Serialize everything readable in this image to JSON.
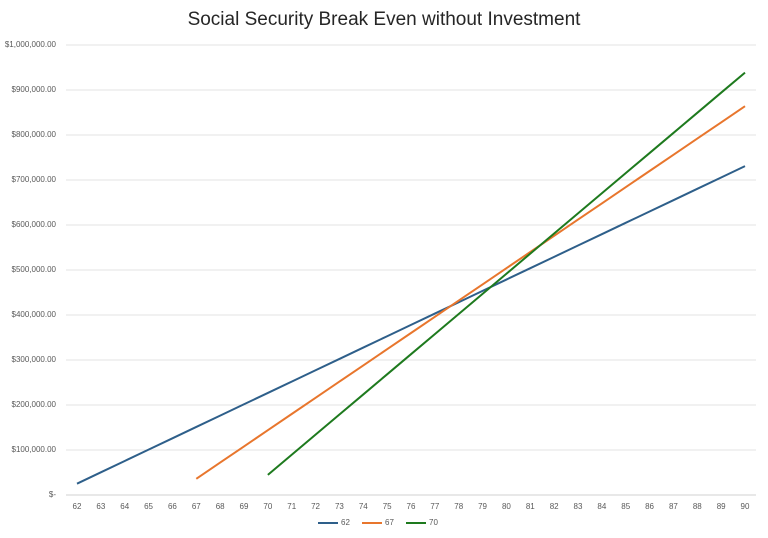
{
  "chart_data": {
    "type": "line",
    "title": "Social Security Break Even without Investment",
    "categories": [
      "62",
      "63",
      "64",
      "65",
      "66",
      "67",
      "68",
      "69",
      "70",
      "71",
      "72",
      "73",
      "74",
      "75",
      "76",
      "77",
      "78",
      "79",
      "80",
      "81",
      "82",
      "83",
      "84",
      "85",
      "86",
      "87",
      "88",
      "89",
      "90"
    ],
    "series": [
      {
        "name": "62",
        "color": "#2e5f8a",
        "values": [
          25200,
          50400,
          75600,
          100800,
          126000,
          151200,
          176400,
          201600,
          226800,
          252000,
          277200,
          302400,
          327600,
          352800,
          378000,
          403200,
          428400,
          453600,
          478800,
          504000,
          529200,
          554400,
          579600,
          604800,
          630000,
          655200,
          680400,
          705600,
          730800
        ]
      },
      {
        "name": "67",
        "color": "#e8762d",
        "values": [
          null,
          null,
          null,
          null,
          null,
          36000,
          72000,
          108000,
          144000,
          180000,
          216000,
          252000,
          288000,
          324000,
          360000,
          396000,
          432000,
          468000,
          504000,
          540000,
          576000,
          612000,
          648000,
          684000,
          720000,
          756000,
          792000,
          828000,
          864000
        ]
      },
      {
        "name": "70",
        "color": "#1e7a1e",
        "values": [
          null,
          null,
          null,
          null,
          null,
          null,
          null,
          null,
          44700,
          89400,
          134100,
          178800,
          223500,
          268200,
          312900,
          357600,
          402300,
          447000,
          491700,
          536400,
          581100,
          625800,
          670500,
          715200,
          759900,
          804600,
          849300,
          894000,
          938700
        ]
      }
    ],
    "ylim": [
      0,
      1000000
    ],
    "yticks": [
      {
        "value": 0,
        "label": "$-"
      },
      {
        "value": 100000,
        "label": "$100,000.00"
      },
      {
        "value": 200000,
        "label": "$200,000.00"
      },
      {
        "value": 300000,
        "label": "$300,000.00"
      },
      {
        "value": 400000,
        "label": "$400,000.00"
      },
      {
        "value": 500000,
        "label": "$500,000.00"
      },
      {
        "value": 600000,
        "label": "$600,000.00"
      },
      {
        "value": 700000,
        "label": "$700,000.00"
      },
      {
        "value": 800000,
        "label": "$800,000.00"
      },
      {
        "value": 900000,
        "label": "$900,000.00"
      },
      {
        "value": 1000000,
        "label": "$1,000,000.00"
      }
    ],
    "grid": true,
    "legend": "bottom"
  }
}
